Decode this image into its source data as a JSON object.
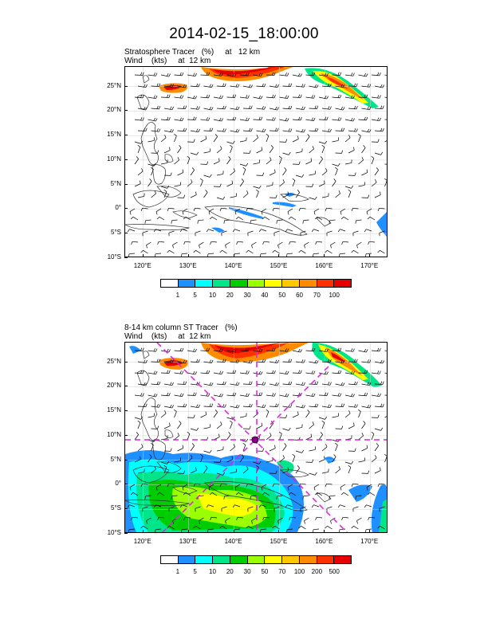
{
  "title": "2014-02-15_18:00:00",
  "panels": [
    {
      "id": "top",
      "title_line1": "Stratosphere Tracer   (%)     at   12 km",
      "title_line2": "Wind    (kts)     at  12 km",
      "colorbar_labels": [
        "1",
        "5",
        "10",
        "20",
        "30",
        "40",
        "50",
        "60",
        "70",
        "100"
      ],
      "colorbar_colors": [
        "#ffffff",
        "#1e90ff",
        "#00ffff",
        "#00e58a",
        "#00cd00",
        "#9aff00",
        "#ffff00",
        "#ffc800",
        "#ff8c00",
        "#ff3000",
        "#e60000"
      ]
    },
    {
      "id": "bottom",
      "title_line1": "8-14 km column ST Tracer   (%)",
      "title_line2": "Wind    (kts)     at  12 km",
      "colorbar_labels": [
        "1",
        "5",
        "10",
        "20",
        "30",
        "50",
        "70",
        "100",
        "200",
        "500"
      ],
      "colorbar_colors": [
        "#ffffff",
        "#1e90ff",
        "#00ffff",
        "#00e58a",
        "#00cd00",
        "#9aff00",
        "#ffff00",
        "#ffc800",
        "#ff8c00",
        "#ff3000",
        "#e60000"
      ]
    }
  ],
  "lat_labels": [
    "25°N",
    "20°N",
    "15°N",
    "10°N",
    "5°N",
    "0°",
    "5°S",
    "10°S"
  ],
  "lon_labels": [
    "120°E",
    "130°E",
    "140°E",
    "150°E",
    "160°E",
    "170°E"
  ],
  "map_extent": {
    "lon": [
      116,
      174
    ],
    "lat": [
      -10,
      29
    ]
  },
  "cross_section_center": {
    "lon": 145,
    "lat": 10
  }
}
